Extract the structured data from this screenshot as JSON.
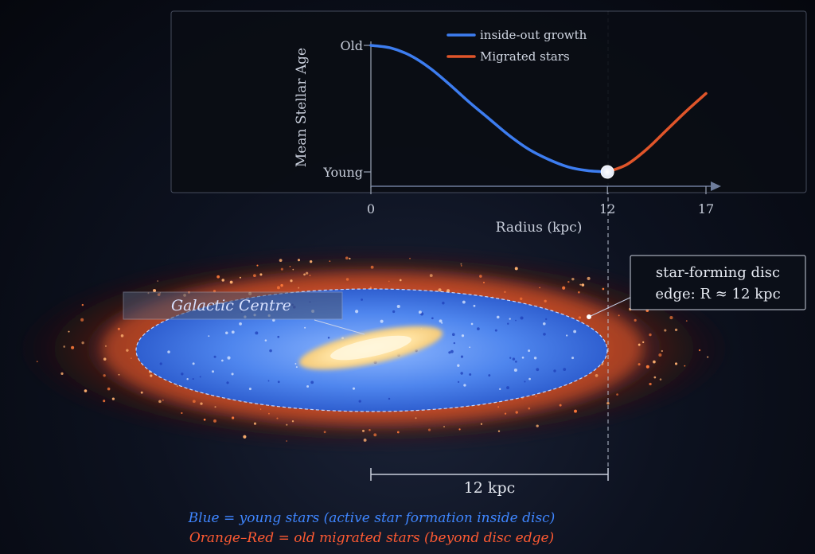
{
  "chart_data": {
    "type": "line",
    "title": "",
    "xlabel": "Radius (kpc)",
    "ylabel": "Mean Stellar Age",
    "xticks": [
      "0",
      "12",
      "17"
    ],
    "yticks": [
      "Old",
      "Young"
    ],
    "xlim": [
      0,
      17
    ],
    "ylim": [
      0,
      1
    ],
    "break_radius_kpc": 12,
    "series": [
      {
        "name": "inside-out growth",
        "color": "#3d7df0",
        "x": [
          0,
          1,
          2,
          3,
          4,
          5,
          6,
          7,
          8,
          9,
          10,
          11,
          12
        ],
        "y": [
          1.0,
          0.98,
          0.92,
          0.82,
          0.69,
          0.55,
          0.42,
          0.29,
          0.18,
          0.1,
          0.04,
          0.01,
          0.0
        ]
      },
      {
        "name": "Migrated stars",
        "color": "#e0552a",
        "x": [
          12,
          13,
          14,
          15,
          16,
          17
        ],
        "y": [
          0.0,
          0.06,
          0.18,
          0.33,
          0.48,
          0.62
        ]
      }
    ]
  },
  "diagram": {
    "centre_label": "Galactic Centre",
    "edge_label_line1": "star-forming disc",
    "edge_label_line2": "edge: R ≈ 12 kpc",
    "scale_label": "12 kpc"
  },
  "caption": {
    "blue": "Blue = young stars (active star formation inside disc)",
    "orange": "Orange–Red = old migrated stars (beyond disc edge)",
    "blue_color": "#3f86ff",
    "orange_color": "#ff5a32"
  }
}
